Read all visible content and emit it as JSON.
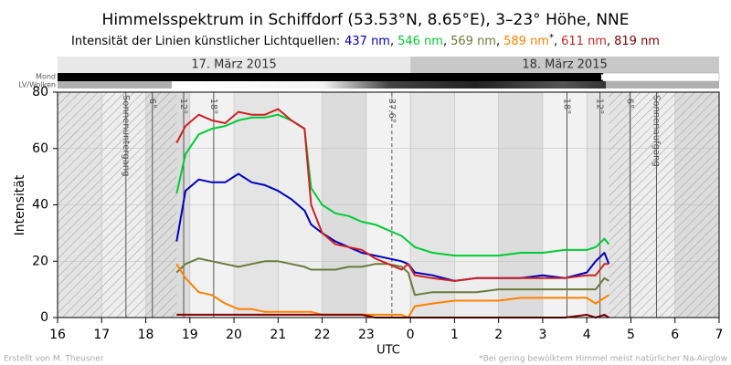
{
  "chart_data": {
    "type": "line",
    "title": "Himmelsspektrum in Schiffdorf (53.53°N, 8.65°E), 3–23° Höhe, NNE",
    "subtitle": "Intensität der Linien künstlicher Lichtquellen:",
    "legend_separator": ",",
    "footnote_marker": "*",
    "y_label": "Intensität",
    "x_label": "UTC",
    "credit": "Erstellt von M. Theusner",
    "footnote": "*Bei gering bewölktem Himmel meist natürlicher Na-Airglow",
    "dates": [
      "17. März 2015",
      "18. März 2015"
    ],
    "row_labels": [
      "Mond",
      "LV/Wolken"
    ],
    "grid": true,
    "xlim": [
      16,
      31
    ],
    "xticks": [
      16,
      17,
      18,
      19,
      20,
      21,
      22,
      23,
      {
        "value": 24,
        "label": "0"
      },
      {
        "value": 25,
        "label": "1"
      },
      {
        "value": 26,
        "label": "2"
      },
      {
        "value": 27,
        "label": "3"
      },
      {
        "value": 28,
        "label": "4"
      },
      {
        "value": 29,
        "label": "5"
      },
      {
        "value": 30,
        "label": "6"
      },
      {
        "value": 31,
        "label": "7"
      }
    ],
    "ylim": [
      0,
      80
    ],
    "yticks": [
      0,
      20,
      40,
      60,
      80
    ],
    "annotations": [
      {
        "x": 17.55,
        "label": "Sonnenuntergang"
      },
      {
        "x": 18.15,
        "label": "-6°"
      },
      {
        "x": 18.86,
        "label": "-12°"
      },
      {
        "x": 19.54,
        "label": "-18°"
      },
      {
        "x": 23.58,
        "label": "-37.6°",
        "dashed": true
      },
      {
        "x": 27.55,
        "label": "-18°"
      },
      {
        "x": 28.3,
        "label": "-12°"
      },
      {
        "x": 28.98,
        "label": "-6°"
      },
      {
        "x": 29.58,
        "label": "Sonnenaufgang"
      }
    ],
    "x": [
      18.7,
      18.9,
      19.2,
      19.5,
      19.8,
      20.1,
      20.4,
      20.7,
      21.0,
      21.3,
      21.6,
      21.75,
      22.0,
      22.3,
      22.6,
      22.9,
      23.2,
      23.5,
      23.8,
      23.95,
      24.1,
      24.5,
      25,
      25.5,
      26,
      26.5,
      27,
      27.5,
      28,
      28.2,
      28.4,
      28.5
    ],
    "series": [
      {
        "name": "437 nm",
        "color": "#0000c0",
        "values": [
          27,
          45,
          49,
          48,
          48,
          51,
          48,
          47,
          45,
          42,
          38,
          33,
          30,
          27,
          25,
          23,
          22,
          21,
          20,
          19,
          16,
          15,
          13,
          14,
          14,
          14,
          15,
          14,
          16,
          20,
          23,
          19
        ]
      },
      {
        "name": "546 nm",
        "color": "#00cc33",
        "values": [
          44,
          58,
          65,
          67,
          68,
          70,
          71,
          71,
          72,
          70,
          67,
          46,
          40,
          37,
          36,
          34,
          33,
          31,
          29,
          27,
          25,
          23,
          22,
          22,
          22,
          23,
          23,
          24,
          24,
          25,
          28,
          26
        ]
      },
      {
        "name": "569 nm",
        "color": "#6b7a3a",
        "values": [
          16,
          19,
          21,
          20,
          19,
          18,
          19,
          20,
          20,
          19,
          18,
          17,
          17,
          17,
          18,
          18,
          19,
          19,
          18,
          16,
          8,
          9,
          9,
          9,
          10,
          10,
          10,
          10,
          10,
          10,
          14,
          13
        ]
      },
      {
        "name": "589 nm",
        "color": "#ff8000",
        "values": [
          19,
          14,
          9,
          8,
          5,
          3,
          3,
          2,
          2,
          2,
          2,
          2,
          1,
          1,
          1,
          1,
          1,
          1,
          1,
          0,
          4,
          5,
          6,
          6,
          6,
          7,
          7,
          7,
          7,
          5,
          7,
          8
        ]
      },
      {
        "name": "611 nm",
        "color": "#cc2222",
        "values": [
          62,
          68,
          72,
          70,
          69,
          73,
          72,
          72,
          74,
          70,
          67,
          40,
          30,
          26,
          25,
          24,
          21,
          19,
          17,
          19,
          15,
          14,
          13,
          14,
          14,
          14,
          14,
          14,
          15,
          15,
          19,
          19
        ]
      },
      {
        "name": "819 nm",
        "color": "#800000",
        "values": [
          1,
          1,
          1,
          1,
          1,
          1,
          1,
          1,
          1,
          1,
          1,
          1,
          1,
          1,
          1,
          1,
          0,
          0,
          0,
          0,
          0,
          0,
          0,
          0,
          0,
          0,
          0,
          0,
          1,
          0,
          1,
          0
        ]
      }
    ]
  }
}
